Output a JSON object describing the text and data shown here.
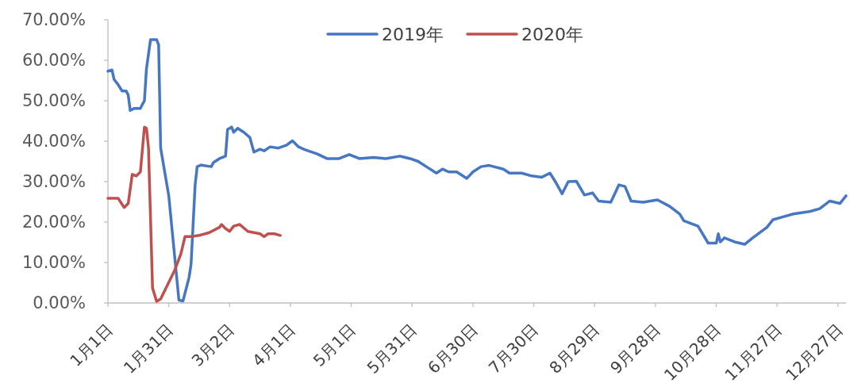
{
  "chart_data": {
    "type": "line",
    "legend": "top",
    "grid": false,
    "line_style": "solid",
    "xlim": [
      "--01-01",
      "--12-31"
    ],
    "xticks": [
      {
        "value": "--01-01",
        "label": "1月1日"
      },
      {
        "value": "--01-31",
        "label": "1月31日"
      },
      {
        "value": "--03-02",
        "label": "3月2日"
      },
      {
        "value": "--04-01",
        "label": "4月1日"
      },
      {
        "value": "--05-01",
        "label": "5月1日"
      },
      {
        "value": "--05-31",
        "label": "5月31日"
      },
      {
        "value": "--06-30",
        "label": "6月30日"
      },
      {
        "value": "--07-30",
        "label": "7月30日"
      },
      {
        "value": "--08-29",
        "label": "8月29日"
      },
      {
        "value": "--09-28",
        "label": "9月28日"
      },
      {
        "value": "--10-28",
        "label": "10月28日"
      },
      {
        "value": "--11-27",
        "label": "11月27日"
      },
      {
        "value": "--12-27",
        "label": "12月27日"
      }
    ],
    "ylim": [
      0,
      70
    ],
    "yticks": [
      {
        "value": 0,
        "label": "0.00%"
      },
      {
        "value": 10,
        "label": "10.00%"
      },
      {
        "value": 20,
        "label": "20.00%"
      },
      {
        "value": 30,
        "label": "30.00%"
      },
      {
        "value": 40,
        "label": "40.00%"
      },
      {
        "value": 50,
        "label": "50.00%"
      },
      {
        "value": 60,
        "label": "60.00%"
      },
      {
        "value": 70,
        "label": "70.00%"
      }
    ],
    "series": [
      {
        "name": "2019年",
        "color": "#4677c2",
        "x": [
          "--01-01",
          "--01-03",
          "--01-04",
          "--01-06",
          "--01-08",
          "--01-10",
          "--01-11",
          "--01-12",
          "--01-14",
          "--01-17",
          "--01-18",
          "--01-19",
          "--01-20",
          "--01-22",
          "--01-25",
          "--01-26",
          "--01-27",
          "--01-31",
          "--02-05",
          "--02-07",
          "--02-08",
          "--02-10",
          "--02-11",
          "--02-13",
          "--02-14",
          "--02-16",
          "--02-21",
          "--02-22",
          "--02-25",
          "--02-28",
          "--03-01",
          "--03-03",
          "--03-04",
          "--03-06",
          "--03-09",
          "--03-12",
          "--03-14",
          "--03-17",
          "--03-19",
          "--03-22",
          "--03-26",
          "--03-30",
          "--04-02",
          "--04-05",
          "--04-08",
          "--04-14",
          "--04-19",
          "--04-25",
          "--04-30",
          "--05-05",
          "--05-12",
          "--05-18",
          "--05-25",
          "--05-30",
          "--06-03",
          "--06-07",
          "--06-12",
          "--06-15",
          "--06-18",
          "--06-22",
          "--06-27",
          "--06-30",
          "--07-04",
          "--07-08",
          "--07-15",
          "--07-18",
          "--07-24",
          "--07-29",
          "--08-03",
          "--08-07",
          "--08-10",
          "--08-13",
          "--08-16",
          "--08-20",
          "--08-24",
          "--08-28",
          "--08-31",
          "--09-06",
          "--09-10",
          "--09-13",
          "--09-16",
          "--09-22",
          "--09-29",
          "--10-05",
          "--10-10",
          "--10-12",
          "--10-19",
          "--10-24",
          "--10-28",
          "--10-29",
          "--10-30",
          "--11-01",
          "--11-06",
          "--11-11",
          "--11-15",
          "--11-22",
          "--11-25",
          "--11-30",
          "--12-05",
          "--12-13",
          "--12-18",
          "--12-23",
          "--12-28",
          "--12-31"
        ],
        "values": [
          57.3,
          57.6,
          55.3,
          54,
          52.4,
          52.4,
          51.4,
          47.6,
          48.1,
          48.1,
          49.1,
          50,
          57.9,
          65.1,
          65.1,
          63.8,
          38.3,
          26.5,
          0.7,
          0.5,
          2.4,
          6.3,
          9.6,
          29.2,
          33.7,
          34.1,
          33.7,
          34.7,
          35.7,
          36.3,
          42.9,
          43.5,
          42.2,
          43.2,
          42.2,
          40.9,
          37.3,
          38,
          37.6,
          38.6,
          38.3,
          39,
          40.1,
          38.6,
          37.9,
          36.9,
          35.7,
          35.7,
          36.7,
          35.7,
          36,
          35.7,
          36.3,
          35.7,
          35,
          33.7,
          32.1,
          33.1,
          32.4,
          32.4,
          30.8,
          32.4,
          33.7,
          34,
          33.1,
          32.1,
          32.1,
          31.4,
          31.1,
          32.1,
          29.7,
          27,
          30,
          30.1,
          26.7,
          27.2,
          25.2,
          24.9,
          29.2,
          28.8,
          25.2,
          24.9,
          25.5,
          23.9,
          22,
          20.3,
          19,
          14.8,
          14.8,
          17.1,
          15.1,
          16.1,
          15.1,
          14.5,
          16.1,
          18.7,
          20.6,
          21.3,
          22,
          22.6,
          23.3,
          25.2,
          24.6,
          26.5
        ]
      },
      {
        "name": "2020年",
        "color": "#c0504d",
        "x": [
          "--01-01",
          "--01-06",
          "--01-09",
          "--01-11",
          "--01-13",
          "--01-15",
          "--01-17",
          "--01-19",
          "--01-20",
          "--01-21",
          "--01-23",
          "--01-25",
          "--01-27",
          "--02-03",
          "--02-06",
          "--02-08",
          "--02-11",
          "--02-15",
          "--02-20",
          "--02-25",
          "--02-26",
          "--02-28",
          "--03-02",
          "--03-04",
          "--03-07",
          "--03-11",
          "--03-17",
          "--03-19",
          "--03-21",
          "--03-24",
          "--03-27"
        ],
        "values": [
          25.9,
          25.9,
          23.6,
          24.6,
          31.8,
          31.4,
          32.4,
          43.5,
          43.2,
          38.3,
          3.7,
          0.4,
          1,
          8.2,
          12.2,
          16.4,
          16.4,
          16.7,
          17.4,
          18.7,
          19.4,
          18.4,
          17.7,
          19,
          19.4,
          17.7,
          17.1,
          16.4,
          17.1,
          17.1,
          16.7
        ]
      }
    ]
  }
}
